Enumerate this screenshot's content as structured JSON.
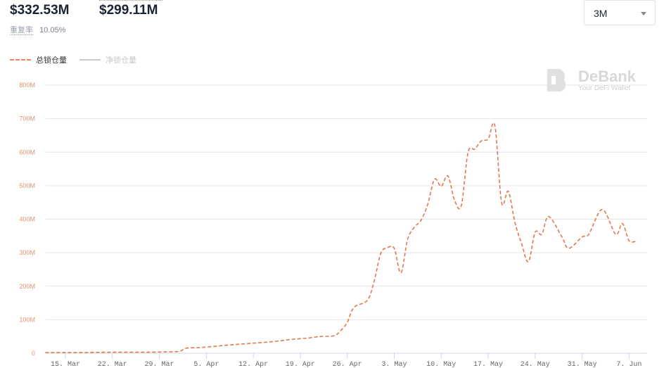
{
  "stats": {
    "value1": "$332.53M",
    "value2": "$299.11M",
    "rate_label": "重复率",
    "rate_value": "10.05%"
  },
  "range_select": {
    "value": "3M"
  },
  "legend": [
    {
      "label": "总锁仓量",
      "active": true
    },
    {
      "label": "净锁仓量",
      "active": false
    }
  ],
  "watermark": {
    "name": "DeBank",
    "tagline": "Your DeFi Wallet"
  },
  "colors": {
    "series": "#e07a4c",
    "grid": "#e6e6e6"
  },
  "chart_data": {
    "type": "line",
    "title": "",
    "xlabel": "",
    "ylabel": "",
    "ylim": [
      0,
      800
    ],
    "y_unit": "M",
    "grid": true,
    "legend_position": "top-left",
    "y_ticks": [
      "0",
      "100M",
      "200M",
      "300M",
      "400M",
      "500M",
      "600M",
      "700M",
      "800M"
    ],
    "x_ticks": [
      "15. Mar",
      "22. Mar",
      "29. Mar",
      "5. Apr",
      "12. Apr",
      "19. Apr",
      "26. Apr",
      "3. May",
      "10. May",
      "17. May",
      "24. May",
      "31. May",
      "7. Jun"
    ],
    "series": [
      {
        "name": "总锁仓量",
        "x": [
          "03-12",
          "03-15",
          "03-18",
          "03-21",
          "03-24",
          "03-27",
          "03-30",
          "04-01",
          "04-02",
          "04-04",
          "04-06",
          "04-08",
          "04-10",
          "04-12",
          "04-14",
          "04-16",
          "04-18",
          "04-20",
          "04-22",
          "04-24",
          "04-25",
          "04-26",
          "04-27",
          "04-29",
          "04-30",
          "05-01",
          "05-02",
          "05-03",
          "05-04",
          "05-05",
          "05-06",
          "05-07",
          "05-08",
          "05-09",
          "05-10",
          "05-11",
          "05-12",
          "05-13",
          "05-14",
          "05-15",
          "05-16",
          "05-17",
          "05-18",
          "05-19",
          "05-20",
          "05-21",
          "05-22",
          "05-23",
          "05-24",
          "05-25",
          "05-26",
          "05-28",
          "05-29",
          "05-31",
          "06-01",
          "06-03",
          "06-05",
          "06-06",
          "06-07",
          "06-08"
        ],
        "y": [
          2,
          2,
          2,
          3,
          3,
          3,
          4,
          6,
          15,
          17,
          20,
          24,
          27,
          30,
          33,
          37,
          42,
          45,
          50,
          52,
          67,
          92,
          137,
          158,
          214,
          298,
          315,
          313,
          240,
          340,
          376,
          397,
          445,
          519,
          498,
          529,
          456,
          441,
          599,
          609,
          634,
          639,
          679,
          450,
          483,
          389,
          326,
          273,
          361,
          355,
          408,
          347,
          313,
          347,
          355,
          429,
          355,
          387,
          336,
          334
        ]
      }
    ]
  }
}
